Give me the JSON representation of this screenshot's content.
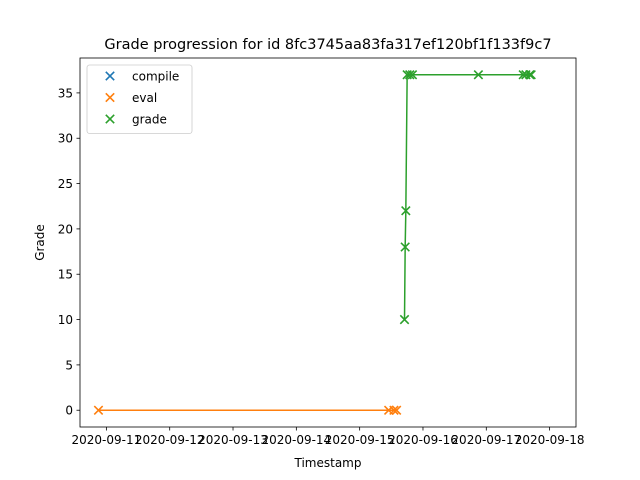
{
  "chart_data": {
    "type": "line",
    "title": "Grade progression for id 8fc3745aa83fa317ef120bf1f133f9c7",
    "xlabel": "Timestamp",
    "ylabel": "Grade",
    "x_tick_labels": [
      "2020-09-11",
      "2020-09-12",
      "2020-09-13",
      "2020-09-14",
      "2020-09-15",
      "2020-09-16",
      "2020-09-17",
      "2020-09-18"
    ],
    "x_range": [
      "2020-09-10T14:00",
      "2020-09-18T10:00"
    ],
    "y_ticks": [
      0,
      5,
      10,
      15,
      20,
      25,
      30,
      35
    ],
    "ylim": [
      -1.85,
      38.85
    ],
    "marker": "x",
    "grid": false,
    "legend_position": "top-left",
    "series": [
      {
        "name": "compile",
        "color": "#1f77b4",
        "points": []
      },
      {
        "name": "eval",
        "color": "#ff7f0e",
        "points": [
          {
            "x": "2020-09-10T21:00",
            "y": 0
          },
          {
            "x": "2020-09-15T11:00",
            "y": 0
          },
          {
            "x": "2020-09-15T13:00",
            "y": 0
          },
          {
            "x": "2020-09-15T14:00",
            "y": 0
          }
        ]
      },
      {
        "name": "grade",
        "color": "#2ca02c",
        "points": [
          {
            "x": "2020-09-15T17:00",
            "y": 10
          },
          {
            "x": "2020-09-15T17:15",
            "y": 18
          },
          {
            "x": "2020-09-15T17:30",
            "y": 22
          },
          {
            "x": "2020-09-15T18:00",
            "y": 37
          },
          {
            "x": "2020-09-15T19:00",
            "y": 37
          },
          {
            "x": "2020-09-15T20:00",
            "y": 37
          },
          {
            "x": "2020-09-16T21:00",
            "y": 37
          },
          {
            "x": "2020-09-17T14:00",
            "y": 37
          },
          {
            "x": "2020-09-17T15:00",
            "y": 37
          },
          {
            "x": "2020-09-17T16:30",
            "y": 37
          },
          {
            "x": "2020-09-17T17:00",
            "y": 37
          }
        ]
      }
    ]
  }
}
